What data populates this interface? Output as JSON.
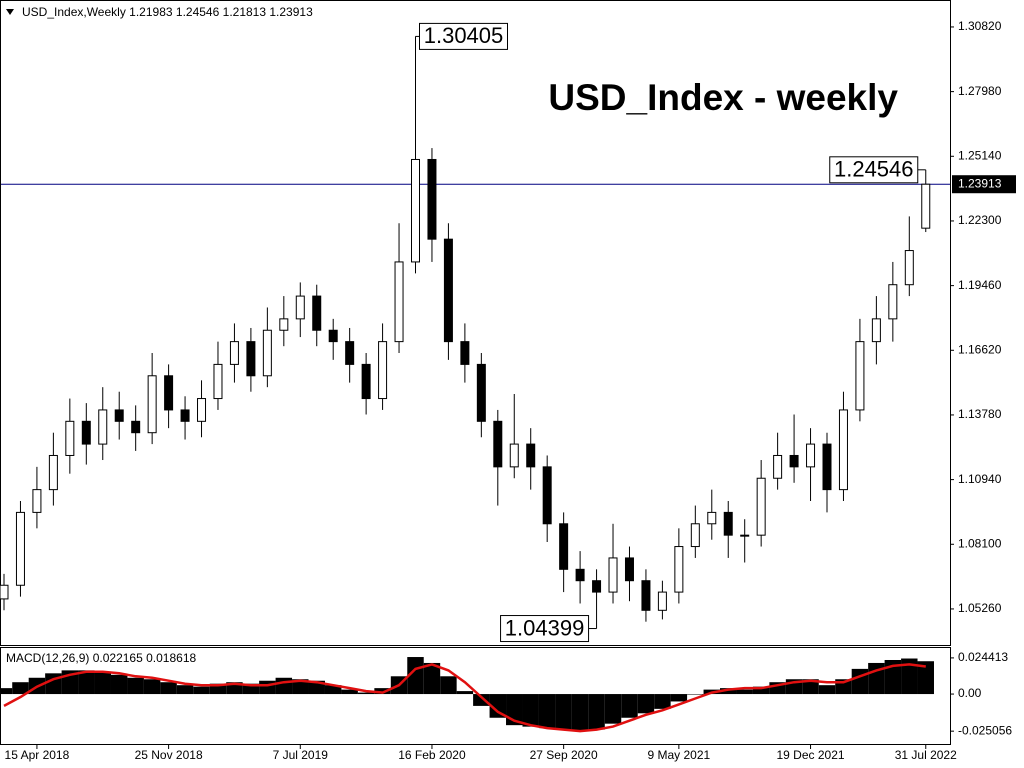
{
  "chart_data": [
    {
      "type": "candlestick",
      "symbol": "USD_Index,Weekly",
      "title": "USD_Index - weekly",
      "categories": [
        null,
        null,
        "15 Apr 2018",
        null,
        null,
        null,
        null,
        null,
        null,
        null,
        "25 Nov 2018",
        null,
        null,
        null,
        null,
        null,
        null,
        null,
        "7 Jul 2019",
        null,
        null,
        null,
        null,
        null,
        null,
        null,
        "16 Feb 2020",
        null,
        null,
        null,
        null,
        null,
        null,
        null,
        "27 Sep 2020",
        null,
        null,
        null,
        null,
        null,
        null,
        "9 May 2021",
        null,
        null,
        null,
        null,
        null,
        null,
        null,
        "19 Dec 2021",
        null,
        null,
        null,
        null,
        null,
        null,
        "31 Jul 2022"
      ],
      "open": [
        1.057,
        1.063,
        1.095,
        1.105,
        1.12,
        1.135,
        1.125,
        1.14,
        1.135,
        1.13,
        1.155,
        1.14,
        1.135,
        1.145,
        1.16,
        1.17,
        1.155,
        1.175,
        1.18,
        1.19,
        1.175,
        1.17,
        1.16,
        1.145,
        1.17,
        1.205,
        1.25,
        1.215,
        1.17,
        1.16,
        1.135,
        1.115,
        1.125,
        1.115,
        1.09,
        1.07,
        1.065,
        1.06,
        1.075,
        1.065,
        1.052,
        1.06,
        1.08,
        1.09,
        1.095,
        1.085,
        1.085,
        1.11,
        1.12,
        1.115,
        1.125,
        1.105,
        1.14,
        1.17,
        1.18,
        1.195,
        1.21983
      ],
      "high": [
        1.068,
        1.1,
        1.115,
        1.13,
        1.145,
        1.143,
        1.15,
        1.148,
        1.142,
        1.165,
        1.16,
        1.146,
        1.153,
        1.17,
        1.178,
        1.176,
        1.185,
        1.19,
        1.196,
        1.195,
        1.18,
        1.176,
        1.165,
        1.178,
        1.222,
        1.30405,
        1.255,
        1.222,
        1.178,
        1.165,
        1.14,
        1.147,
        1.132,
        1.12,
        1.095,
        1.078,
        1.07,
        1.09,
        1.08,
        1.07,
        1.065,
        1.088,
        1.098,
        1.105,
        1.1,
        1.092,
        1.118,
        1.13,
        1.138,
        1.132,
        1.13,
        1.148,
        1.18,
        1.19,
        1.205,
        1.225,
        1.24546
      ],
      "low": [
        1.052,
        1.058,
        1.088,
        1.098,
        1.112,
        1.116,
        1.118,
        1.127,
        1.122,
        1.125,
        1.132,
        1.127,
        1.128,
        1.14,
        1.152,
        1.148,
        1.15,
        1.168,
        1.172,
        1.168,
        1.162,
        1.152,
        1.138,
        1.14,
        1.165,
        1.2,
        1.205,
        1.162,
        1.152,
        1.128,
        1.098,
        1.11,
        1.105,
        1.082,
        1.06,
        1.055,
        1.04399,
        1.055,
        1.056,
        1.047,
        1.048,
        1.055,
        1.075,
        1.083,
        1.075,
        1.073,
        1.08,
        1.105,
        1.108,
        1.1,
        1.095,
        1.1,
        1.135,
        1.16,
        1.17,
        1.19,
        1.21813
      ],
      "close": [
        1.063,
        1.095,
        1.105,
        1.12,
        1.135,
        1.125,
        1.14,
        1.135,
        1.13,
        1.155,
        1.14,
        1.135,
        1.145,
        1.16,
        1.17,
        1.155,
        1.175,
        1.18,
        1.19,
        1.175,
        1.17,
        1.16,
        1.145,
        1.17,
        1.205,
        1.25,
        1.215,
        1.17,
        1.16,
        1.135,
        1.115,
        1.125,
        1.115,
        1.09,
        1.07,
        1.065,
        1.06,
        1.075,
        1.065,
        1.052,
        1.06,
        1.08,
        1.09,
        1.095,
        1.085,
        1.085,
        1.11,
        1.12,
        1.115,
        1.125,
        1.105,
        1.14,
        1.17,
        1.18,
        1.195,
        1.21,
        1.23913
      ],
      "ylim": [
        1.0372,
        1.3196
      ],
      "yticks": [
        {
          "value": 1.3082,
          "label": "1.30820"
        },
        {
          "value": 1.2798,
          "label": "1.27980"
        },
        {
          "value": 1.2514,
          "label": "1.25140"
        },
        {
          "value": 1.223,
          "label": "1.22300"
        },
        {
          "value": 1.1946,
          "label": "1.19460"
        },
        {
          "value": 1.1662,
          "label": "1.16620"
        },
        {
          "value": 1.1378,
          "label": "1.13780"
        },
        {
          "value": 1.1094,
          "label": "1.10940"
        },
        {
          "value": 1.081,
          "label": "1.08100"
        },
        {
          "value": 1.0526,
          "label": "1.05260"
        }
      ],
      "up_color": "#ffffff",
      "down_color": "#000000",
      "price_line_color": "#000080"
    },
    {
      "type": "macd",
      "label": "MACD(12,26,9)",
      "histogram": [
        0.004,
        0.008,
        0.011,
        0.014,
        0.016,
        0.016,
        0.015,
        0.013,
        0.011,
        0.01,
        0.008,
        0.006,
        0.005,
        0.007,
        0.008,
        0.007,
        0.009,
        0.011,
        0.01,
        0.009,
        0.006,
        0.003,
        0.001,
        0.004,
        0.012,
        0.025,
        0.021,
        0.012,
        0.002,
        -0.008,
        -0.016,
        -0.021,
        -0.022,
        -0.023,
        -0.024,
        -0.025,
        -0.024,
        -0.02,
        -0.016,
        -0.013,
        -0.01,
        -0.005,
        0.0,
        0.003,
        0.004,
        0.003,
        0.005,
        0.008,
        0.01,
        0.01,
        0.006,
        0.01,
        0.017,
        0.021,
        0.023,
        0.024,
        0.022165
      ],
      "signal": [
        -0.008,
        -0.002,
        0.005,
        0.01,
        0.013,
        0.015,
        0.015,
        0.014,
        0.012,
        0.011,
        0.009,
        0.007,
        0.006,
        0.006,
        0.007,
        0.006,
        0.006,
        0.008,
        0.009,
        0.008,
        0.006,
        0.004,
        0.002,
        0.001,
        0.006,
        0.017,
        0.02,
        0.016,
        0.008,
        -0.002,
        -0.012,
        -0.018,
        -0.021,
        -0.023,
        -0.024,
        -0.025,
        -0.024,
        -0.022,
        -0.018,
        -0.014,
        -0.011,
        -0.007,
        -0.003,
        0.001,
        0.003,
        0.004,
        0.004,
        0.006,
        0.008,
        0.009,
        0.008,
        0.008,
        0.012,
        0.016,
        0.019,
        0.02,
        0.018618
      ],
      "histogram_color": "#000000",
      "signal_color": "#e01010",
      "ylim": [
        -0.0344,
        0.0311
      ],
      "yticks": [
        0.024413,
        {
          "value": 0,
          "label": "0.00"
        },
        -0.025056
      ]
    }
  ]
}
